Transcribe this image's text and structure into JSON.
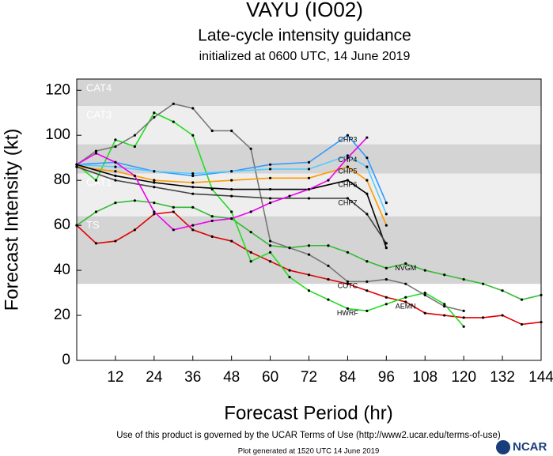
{
  "chart_data": {
    "type": "line",
    "title": "VAYU (IO02)",
    "subtitle": "Late-cycle intensity guidance",
    "initialized": "initialized at 0600 UTC, 14 June 2019",
    "x_label": "Forecast Period (hr)",
    "y_label": "Forecast Intensity (kt)",
    "footer": "Use of this product is governed by the UCAR Terms of Use (http://www2.ucar.edu/terms-of-use)",
    "generated": "Plot generated at 1520 UTC   14 June 2019",
    "logo": "NCAR",
    "xlim": [
      0,
      144
    ],
    "xticks": [
      12,
      24,
      36,
      48,
      60,
      72,
      84,
      96,
      108,
      120,
      132,
      144
    ],
    "ylim": [
      0,
      125
    ],
    "yticks": [
      0,
      20,
      40,
      60,
      80,
      100,
      120
    ],
    "bands": [
      {
        "label": "CAT4",
        "from": 113,
        "to": 125,
        "color": "#d4d4d4"
      },
      {
        "label": "CAT3",
        "from": 96,
        "to": 113,
        "color": "#eeeeee"
      },
      {
        "label": null,
        "from": 83,
        "to": 96,
        "color": "#d4d4d4"
      },
      {
        "label": "CAT1",
        "from": 64,
        "to": 83,
        "color": "#eeeeee"
      },
      {
        "label": "TS",
        "from": 34,
        "to": 64,
        "color": "#d4d4d4"
      }
    ],
    "series": [
      {
        "name": "AEMN",
        "color": "#e00000",
        "x": [
          0,
          6,
          12,
          18,
          24,
          30,
          36,
          42,
          48,
          54,
          60,
          66,
          72,
          78,
          84,
          90,
          96,
          102,
          108,
          114,
          120,
          126,
          132,
          138,
          144
        ],
        "values": [
          60,
          52,
          53,
          58,
          65,
          66,
          58,
          55,
          53,
          48,
          44,
          40,
          38,
          36,
          34,
          31,
          28,
          26,
          21,
          20,
          19,
          19,
          20,
          16,
          17
        ]
      },
      {
        "name": "NVGM",
        "color": "#33bb33",
        "x": [
          0,
          6,
          12,
          18,
          24,
          30,
          36,
          42,
          48,
          54,
          60,
          66,
          72,
          78,
          84,
          90,
          96,
          102,
          108,
          114,
          120,
          126,
          132,
          138,
          144
        ],
        "values": [
          60,
          66,
          70,
          71,
          70,
          68,
          68,
          64,
          63,
          57,
          51,
          50,
          51,
          51,
          48,
          44,
          41,
          43,
          40,
          38,
          36,
          34,
          31,
          27,
          29
        ]
      },
      {
        "name": "HWRF",
        "color": "#22dd22",
        "x": [
          0,
          6,
          12,
          18,
          24,
          30,
          36,
          42,
          48,
          54,
          60,
          66,
          72,
          78,
          84,
          90,
          96,
          102,
          108,
          114,
          120
        ],
        "values": [
          87,
          80,
          98,
          95,
          110,
          106,
          100,
          76,
          66,
          44,
          48,
          37,
          31,
          27,
          23,
          22,
          25,
          28,
          30,
          25,
          15
        ]
      },
      {
        "name": "COTC",
        "color": "#777777",
        "x": [
          0,
          6,
          12,
          18,
          24,
          30,
          36,
          42,
          48,
          54,
          60,
          66,
          72,
          78,
          84,
          90,
          96,
          102,
          108,
          114,
          120
        ],
        "values": [
          87,
          93,
          95,
          100,
          108,
          114,
          112,
          102,
          102,
          94,
          53,
          50,
          47,
          42,
          35,
          35,
          36,
          34,
          29,
          24,
          22
        ]
      },
      {
        "name": "CHP3",
        "color": "#3399ff",
        "x": [
          0,
          12,
          24,
          36,
          48,
          60,
          72,
          84,
          90,
          96
        ],
        "values": [
          87,
          88,
          84,
          82,
          84,
          87,
          88,
          100,
          90,
          70
        ]
      },
      {
        "name": "CHP4",
        "color": "#55ccff",
        "x": [
          0,
          12,
          24,
          36,
          48,
          60,
          72,
          84,
          90,
          96
        ],
        "values": [
          87,
          86,
          84,
          83,
          84,
          85,
          85,
          91,
          86,
          65
        ]
      },
      {
        "name": "CHP5",
        "color": "#ff9900",
        "x": [
          0,
          12,
          24,
          36,
          48,
          60,
          72,
          84,
          90,
          96
        ],
        "values": [
          86,
          84,
          80,
          79,
          80,
          81,
          81,
          86,
          80,
          60
        ]
      },
      {
        "name": "CHP6",
        "color": "#000000",
        "x": [
          0,
          12,
          24,
          36,
          48,
          60,
          72,
          84,
          90,
          96
        ],
        "values": [
          87,
          82,
          79,
          77,
          76,
          76,
          76,
          80,
          74,
          50
        ]
      },
      {
        "name": "CHP7",
        "color": "#444444",
        "x": [
          0,
          12,
          24,
          36,
          48,
          60,
          72,
          84,
          90,
          96
        ],
        "values": [
          86,
          80,
          77,
          74,
          73,
          72,
          72,
          72,
          65,
          52
        ]
      },
      {
        "color": "#ee00ee",
        "x": [
          0,
          6,
          12,
          18,
          24,
          30,
          36,
          42,
          48,
          54,
          60,
          66,
          72,
          78,
          84,
          90
        ],
        "values": [
          87,
          92,
          88,
          82,
          66,
          58,
          60,
          62,
          63,
          66,
          70,
          73,
          76,
          80,
          90,
          99
        ]
      }
    ]
  }
}
